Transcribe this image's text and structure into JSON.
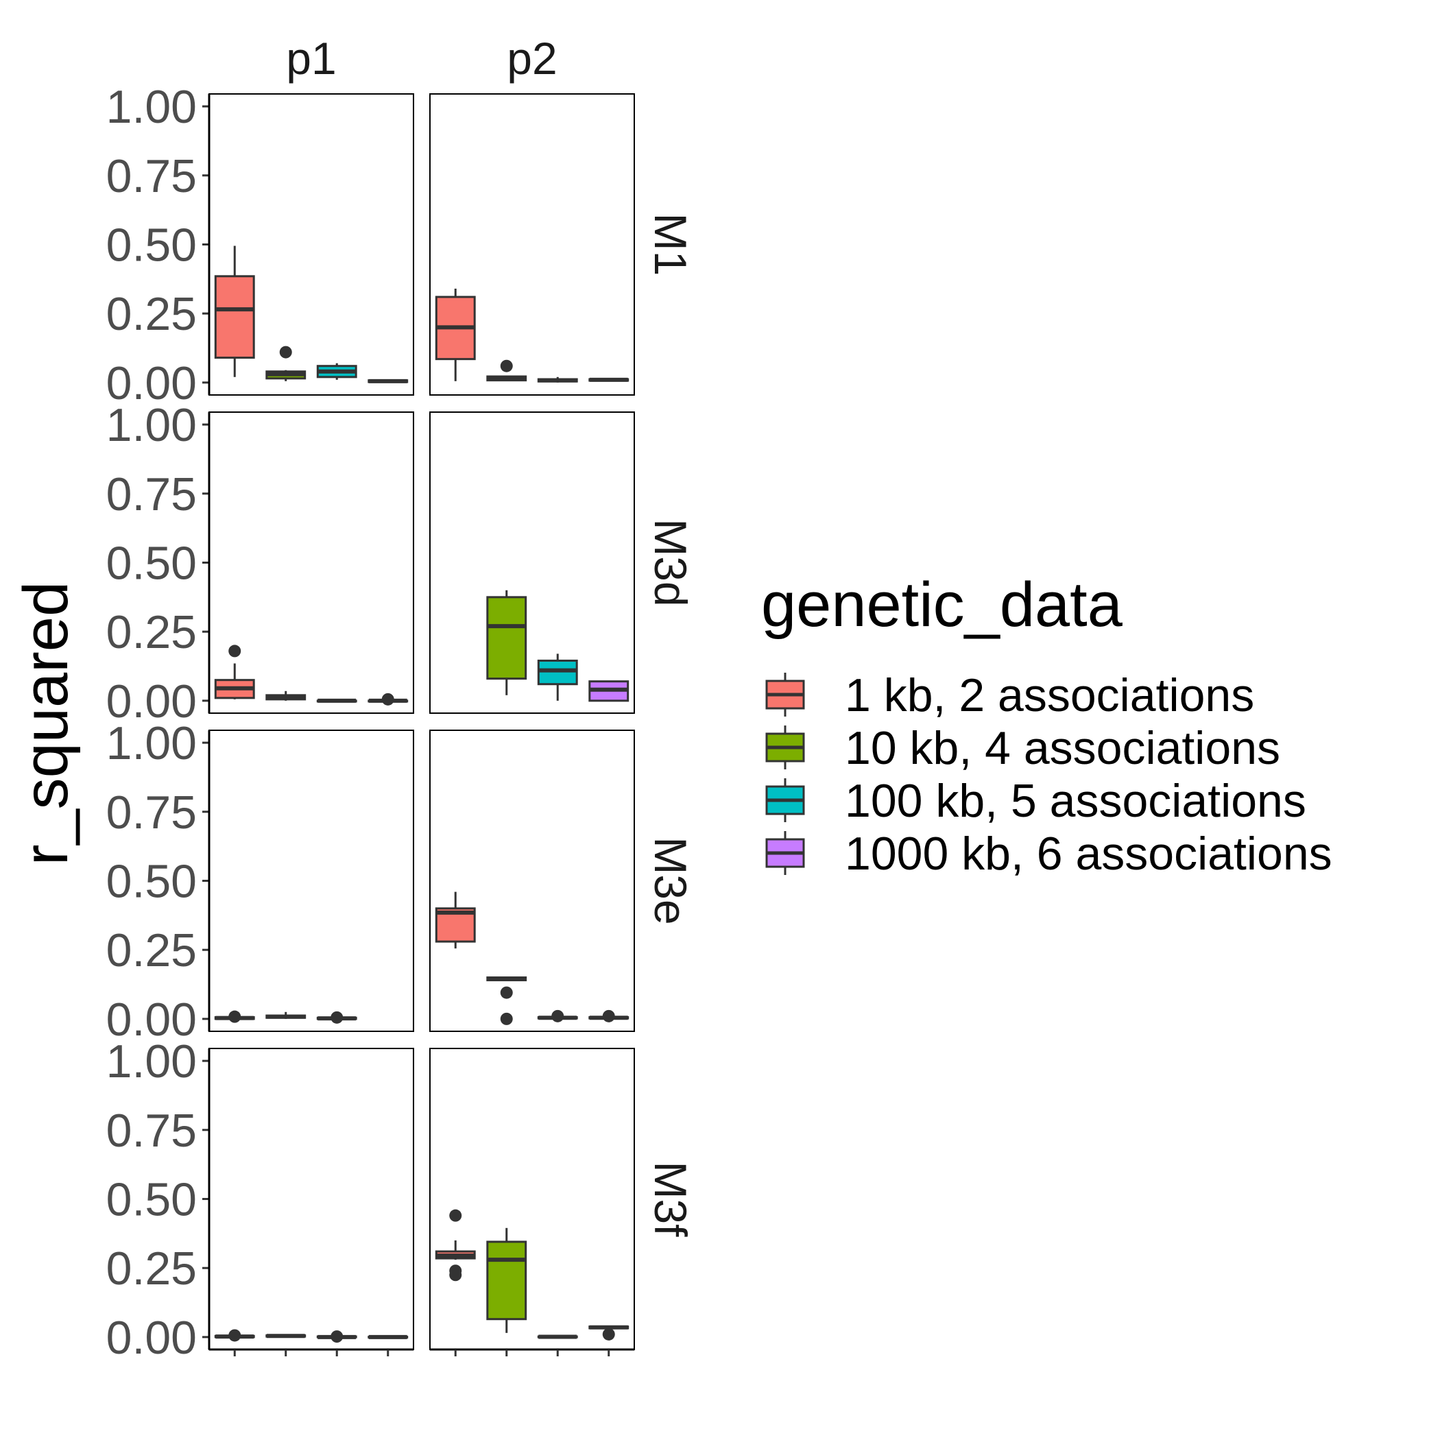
{
  "chart_data": {
    "type": "boxplot",
    "ylabel": "r_squared",
    "xlabel": "",
    "ylim": [
      0,
      1
    ],
    "yticks": [
      "0.00",
      "0.25",
      "0.50",
      "0.75",
      "1.00"
    ],
    "ytick_values": [
      0,
      0.25,
      0.5,
      0.75,
      1
    ],
    "grid": false,
    "col_facets": [
      "p1",
      "p2"
    ],
    "row_facets": [
      "M1",
      "M3d",
      "M3e",
      "M3f"
    ],
    "legend": {
      "title": "genetic_data",
      "position": "right",
      "items": [
        {
          "label": "1 kb, 2 associations",
          "color": "#F8766D"
        },
        {
          "label": "10 kb, 4 associations",
          "color": "#7CAE00"
        },
        {
          "label": "100 kb, 5 associations",
          "color": "#00BFC4"
        },
        {
          "label": "1000 kb, 6 associations",
          "color": "#C77CFF"
        }
      ]
    },
    "panels": [
      {
        "row": "M1",
        "col": "p1",
        "boxes": [
          {
            "group": 0,
            "min": 0.02,
            "q1": 0.09,
            "median": 0.265,
            "q3": 0.385,
            "max": 0.495,
            "outliers": []
          },
          {
            "group": 1,
            "min": 0.005,
            "q1": 0.015,
            "median": 0.03,
            "q3": 0.04,
            "max": 0.045,
            "outliers": [
              0.11
            ]
          },
          {
            "group": 2,
            "min": 0.01,
            "q1": 0.02,
            "median": 0.04,
            "q3": 0.06,
            "max": 0.07,
            "outliers": []
          },
          {
            "group": 3,
            "min": 0.0,
            "q1": 0.002,
            "median": 0.005,
            "q3": 0.008,
            "max": 0.01,
            "outliers": []
          }
        ]
      },
      {
        "row": "M1",
        "col": "p2",
        "boxes": [
          {
            "group": 0,
            "min": 0.005,
            "q1": 0.085,
            "median": 0.2,
            "q3": 0.31,
            "max": 0.34,
            "outliers": []
          },
          {
            "group": 1,
            "min": 0.005,
            "q1": 0.008,
            "median": 0.015,
            "q3": 0.022,
            "max": 0.025,
            "outliers": [
              0.06
            ]
          },
          {
            "group": 2,
            "min": 0.0,
            "q1": 0.004,
            "median": 0.008,
            "q3": 0.012,
            "max": 0.02,
            "outliers": []
          },
          {
            "group": 3,
            "min": 0.005,
            "q1": 0.007,
            "median": 0.01,
            "q3": 0.012,
            "max": 0.014,
            "outliers": []
          }
        ]
      },
      {
        "row": "M3d",
        "col": "p1",
        "boxes": [
          {
            "group": 0,
            "min": 0.005,
            "q1": 0.01,
            "median": 0.045,
            "q3": 0.075,
            "max": 0.135,
            "outliers": [
              0.18
            ]
          },
          {
            "group": 1,
            "min": 0.0,
            "q1": 0.005,
            "median": 0.01,
            "q3": 0.02,
            "max": 0.035,
            "outliers": []
          },
          {
            "group": 2,
            "min": 0.0,
            "q1": 0.0,
            "median": 0.0,
            "q3": 0.0,
            "max": 0.0,
            "outliers": []
          },
          {
            "group": 3,
            "min": 0.0,
            "q1": 0.0,
            "median": 0.0,
            "q3": 0.0,
            "max": 0.0,
            "outliers": [
              0.005
            ]
          }
        ]
      },
      {
        "row": "M3d",
        "col": "p2",
        "boxes": [
          {
            "group": 1,
            "min": 0.02,
            "q1": 0.08,
            "median": 0.27,
            "q3": 0.375,
            "max": 0.4,
            "outliers": []
          },
          {
            "group": 2,
            "min": 0.0,
            "q1": 0.06,
            "median": 0.11,
            "q3": 0.145,
            "max": 0.17,
            "outliers": []
          },
          {
            "group": 3,
            "min": 0.0,
            "q1": 0.0,
            "median": 0.04,
            "q3": 0.07,
            "max": 0.07,
            "outliers": []
          }
        ]
      },
      {
        "row": "M3e",
        "col": "p1",
        "boxes": [
          {
            "group": 0,
            "min": 0.0,
            "q1": 0.0,
            "median": 0.003,
            "q3": 0.006,
            "max": 0.008,
            "outliers": [
              0.008
            ]
          },
          {
            "group": 1,
            "min": 0.0,
            "q1": 0.004,
            "median": 0.008,
            "q3": 0.012,
            "max": 0.025,
            "outliers": []
          },
          {
            "group": 2,
            "min": 0.0,
            "q1": 0.0,
            "median": 0.002,
            "q3": 0.004,
            "max": 0.006,
            "outliers": [
              0.005
            ]
          }
        ]
      },
      {
        "row": "M3e",
        "col": "p2",
        "boxes": [
          {
            "group": 0,
            "min": 0.255,
            "q1": 0.28,
            "median": 0.385,
            "q3": 0.4,
            "max": 0.46,
            "outliers": []
          },
          {
            "group": 1,
            "min": 0.14,
            "q1": 0.14,
            "median": 0.145,
            "q3": 0.15,
            "max": 0.15,
            "outliers": [
              0.095,
              0.0
            ]
          },
          {
            "group": 2,
            "min": 0.0,
            "q1": 0.002,
            "median": 0.004,
            "q3": 0.006,
            "max": 0.008,
            "outliers": [
              0.01
            ]
          },
          {
            "group": 3,
            "min": 0.0,
            "q1": 0.002,
            "median": 0.004,
            "q3": 0.006,
            "max": 0.008,
            "outliers": [
              0.01
            ]
          }
        ]
      },
      {
        "row": "M3f",
        "col": "p1",
        "boxes": [
          {
            "group": 0,
            "min": 0.0,
            "q1": 0.0,
            "median": 0.002,
            "q3": 0.004,
            "max": 0.006,
            "outliers": [
              0.006
            ]
          },
          {
            "group": 1,
            "min": 0.0,
            "q1": 0.002,
            "median": 0.004,
            "q3": 0.006,
            "max": 0.008,
            "outliers": []
          },
          {
            "group": 2,
            "min": 0.0,
            "q1": 0.0,
            "median": 0.0,
            "q3": 0.002,
            "max": 0.002,
            "outliers": [
              0.002
            ]
          },
          {
            "group": 3,
            "min": 0.0,
            "q1": 0.0,
            "median": 0.0,
            "q3": 0.001,
            "max": 0.001,
            "outliers": []
          }
        ]
      },
      {
        "row": "M3f",
        "col": "p2",
        "boxes": [
          {
            "group": 0,
            "min": 0.28,
            "q1": 0.285,
            "median": 0.295,
            "q3": 0.31,
            "max": 0.35,
            "outliers": [
              0.44,
              0.24,
              0.225
            ]
          },
          {
            "group": 1,
            "min": 0.015,
            "q1": 0.065,
            "median": 0.28,
            "q3": 0.345,
            "max": 0.395,
            "outliers": []
          },
          {
            "group": 2,
            "min": 0.0,
            "q1": 0.0,
            "median": 0.001,
            "q3": 0.002,
            "max": 0.003,
            "outliers": []
          },
          {
            "group": 3,
            "min": 0.03,
            "q1": 0.032,
            "median": 0.035,
            "q3": 0.038,
            "max": 0.04,
            "outliers": [
              0.01
            ]
          }
        ]
      }
    ]
  }
}
